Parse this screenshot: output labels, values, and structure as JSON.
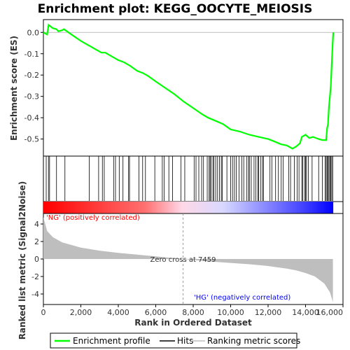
{
  "chart_data": {
    "type": "line",
    "title": "Enrichment plot: KEGG_OOCYTE_MEIOSIS",
    "top_panel": {
      "ylabel": "Enrichment score (ES)",
      "ylim": [
        -0.58,
        0.06
      ],
      "yticks": [
        0.0,
        -0.1,
        -0.2,
        -0.3,
        -0.4,
        -0.5
      ],
      "ytick_labels": [
        "0.0",
        "-0.1",
        "-0.2",
        "-0.3",
        "-0.4",
        "-0.5"
      ],
      "series_color": "#00ff00",
      "es_curve": [
        [
          0,
          0.0
        ],
        [
          200,
          -0.01
        ],
        [
          280,
          0.035
        ],
        [
          500,
          0.02
        ],
        [
          700,
          0.015
        ],
        [
          800,
          0.005
        ],
        [
          1000,
          0.01
        ],
        [
          1100,
          0.015
        ],
        [
          1500,
          -0.01
        ],
        [
          2000,
          -0.04
        ],
        [
          2500,
          -0.065
        ],
        [
          2800,
          -0.08
        ],
        [
          3100,
          -0.095
        ],
        [
          3300,
          -0.095
        ],
        [
          3700,
          -0.115
        ],
        [
          4000,
          -0.13
        ],
        [
          4300,
          -0.14
        ],
        [
          4600,
          -0.155
        ],
        [
          5000,
          -0.18
        ],
        [
          5300,
          -0.19
        ],
        [
          5600,
          -0.205
        ],
        [
          6000,
          -0.23
        ],
        [
          6500,
          -0.26
        ],
        [
          7000,
          -0.29
        ],
        [
          7500,
          -0.325
        ],
        [
          8000,
          -0.355
        ],
        [
          8500,
          -0.385
        ],
        [
          8800,
          -0.4
        ],
        [
          9200,
          -0.415
        ],
        [
          9600,
          -0.43
        ],
        [
          10000,
          -0.455
        ],
        [
          10500,
          -0.465
        ],
        [
          11000,
          -0.48
        ],
        [
          11500,
          -0.49
        ],
        [
          12000,
          -0.5
        ],
        [
          12300,
          -0.51
        ],
        [
          12700,
          -0.525
        ],
        [
          13000,
          -0.53
        ],
        [
          13300,
          -0.545
        ],
        [
          13500,
          -0.535
        ],
        [
          13700,
          -0.52
        ],
        [
          13800,
          -0.49
        ],
        [
          14000,
          -0.48
        ],
        [
          14200,
          -0.495
        ],
        [
          14400,
          -0.49
        ],
        [
          14700,
          -0.5
        ],
        [
          14900,
          -0.505
        ],
        [
          15100,
          -0.505
        ],
        [
          15150,
          -0.45
        ],
        [
          15200,
          -0.43
        ],
        [
          15250,
          -0.35
        ],
        [
          15300,
          -0.3
        ],
        [
          15350,
          -0.25
        ],
        [
          15400,
          -0.15
        ],
        [
          15450,
          -0.05
        ],
        [
          15480,
          0.0
        ]
      ]
    },
    "hits": [
      150,
      270,
      330,
      700,
      1150,
      2450,
      2950,
      3150,
      3250,
      3750,
      3850,
      4050,
      4250,
      4550,
      4600,
      5100,
      5300,
      5450,
      5950,
      6350,
      6450,
      6700,
      6900,
      7350,
      7550,
      8050,
      8150,
      8300,
      8450,
      8550,
      8750,
      8850,
      8900,
      8950,
      9050,
      9100,
      9200,
      9300,
      9400,
      9500,
      9550,
      9800,
      10000,
      10100,
      10200,
      10300,
      10450,
      10600,
      10700,
      10850,
      10950,
      11000,
      11100,
      11250,
      11350,
      11450,
      11500,
      11600,
      11700,
      11750,
      12100,
      12200,
      12400,
      12550,
      12700,
      12800,
      13100,
      13200,
      13400,
      13550,
      13650,
      13800,
      13850,
      13950,
      14000,
      14050,
      14150,
      14350,
      14700,
      14900,
      15050,
      15100,
      15150,
      15200,
      15250,
      15300,
      15350,
      15400,
      15450
    ],
    "ranked_panel": {
      "ylabel": "Ranked list metric (Signal2Noise)",
      "ylim": [
        -5.2,
        5.2
      ],
      "yticks": [
        4,
        2,
        0,
        -2,
        -4
      ],
      "ytick_labels": [
        "4",
        "2",
        "0",
        "-2",
        "-4"
      ],
      "metric_curve": [
        [
          0,
          4.8
        ],
        [
          200,
          3.2
        ],
        [
          500,
          2.5
        ],
        [
          1000,
          1.9
        ],
        [
          2000,
          1.3
        ],
        [
          3000,
          0.95
        ],
        [
          4000,
          0.7
        ],
        [
          5000,
          0.5
        ],
        [
          6000,
          0.3
        ],
        [
          7000,
          0.1
        ],
        [
          7459,
          0.0
        ],
        [
          8000,
          -0.12
        ],
        [
          9000,
          -0.3
        ],
        [
          10000,
          -0.45
        ],
        [
          11000,
          -0.6
        ],
        [
          12000,
          -0.8
        ],
        [
          13000,
          -1.1
        ],
        [
          13500,
          -1.3
        ],
        [
          14000,
          -1.6
        ],
        [
          14500,
          -2.0
        ],
        [
          15000,
          -2.8
        ],
        [
          15300,
          -3.8
        ],
        [
          15460,
          -4.9
        ]
      ],
      "fill_color": "#bebebe",
      "zero_cross": 7459,
      "zero_cross_label": "Zero cross at 7459",
      "pos_label": "'NG' (positively correlated)",
      "neg_label": "'HG' (negatively correlated)",
      "pos_label_color": "#ff0000",
      "neg_label_color": "#0000ff"
    },
    "xlabel": "Rank in Ordered Dataset",
    "xlim": [
      0,
      16000
    ],
    "xticks": [
      0,
      2000,
      4000,
      6000,
      8000,
      10000,
      12000,
      14000,
      16000
    ],
    "xtick_labels": [
      "0",
      "2,000",
      "4,000",
      "6,000",
      "8,000",
      "10,000",
      "12,000",
      "14,000",
      "16,000"
    ],
    "heatbar": {
      "from_color": "#ff0000",
      "mid_color": "#ffffff",
      "to_color": "#0000ff",
      "length": 15480
    },
    "legend": {
      "placement": "bottom",
      "entries": [
        {
          "label": "Enrichment profile",
          "color": "#00ff00",
          "style": "thick"
        },
        {
          "label": "Hits",
          "color": "#000000",
          "style": "line"
        },
        {
          "label": "Ranking metric scores",
          "color": "#bebebe",
          "style": "line"
        }
      ]
    }
  }
}
